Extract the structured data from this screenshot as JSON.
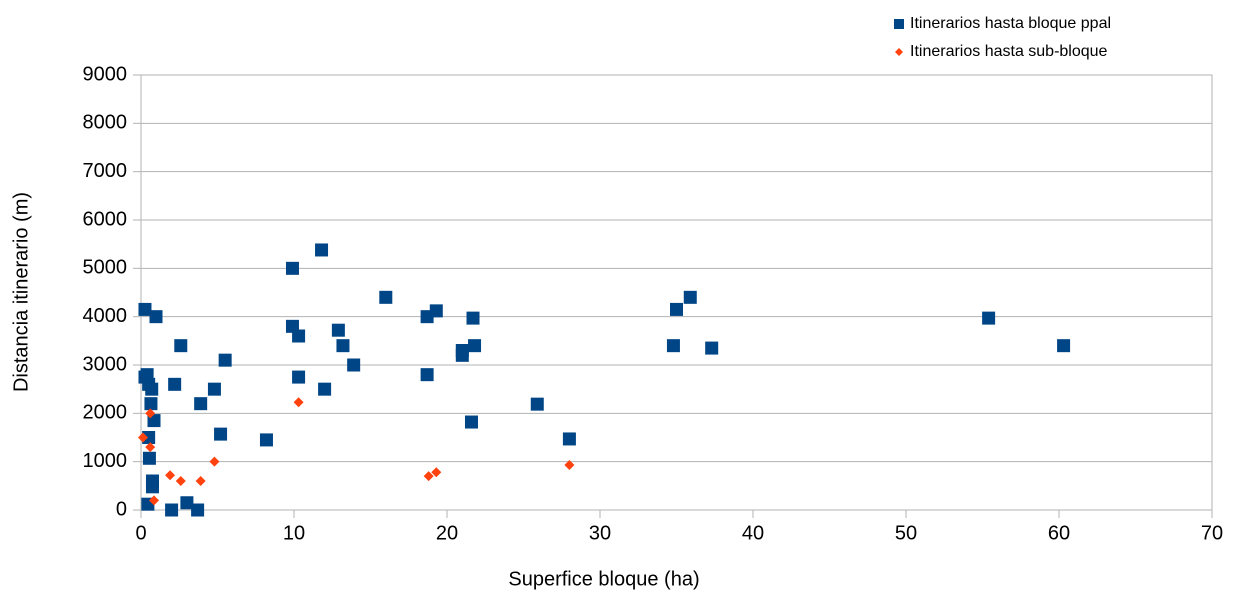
{
  "chart_data": {
    "type": "scatter",
    "xlabel": "Superfice bloque (ha)",
    "ylabel": "Distancia itinerario (m)",
    "xlim": [
      0,
      70
    ],
    "xticks": [
      0,
      10,
      20,
      30,
      40,
      50,
      60,
      70
    ],
    "ylim": [
      0,
      9000
    ],
    "yticks": [
      0,
      1000,
      2000,
      3000,
      4000,
      5000,
      6000,
      7000,
      8000,
      9000
    ],
    "grid": true,
    "legend": "top-right",
    "series": [
      {
        "name": "Itinerarios hasta bloque ppal",
        "color": "#004586",
        "marker": "square",
        "x": [
          0.26,
          0.26,
          0.4,
          0.5,
          0.7,
          0.65,
          0.85,
          0.5,
          0.55,
          0.75,
          0.75,
          0.45,
          0.98,
          2.2,
          2.6,
          2.0,
          3.0,
          3.7,
          3.9,
          4.8,
          5.2,
          5.5,
          8.2,
          9.9,
          9.9,
          10.3,
          10.3,
          11.8,
          12.0,
          12.9,
          13.2,
          13.9,
          16.0,
          18.7,
          18.7,
          19.3,
          21.0,
          21.0,
          21.7,
          21.8,
          21.6,
          25.9,
          28.0,
          34.8,
          35.0,
          35.9,
          37.3,
          55.4,
          60.3
        ],
        "values": [
          4150,
          2750,
          2800,
          2600,
          2500,
          2200,
          1850,
          1500,
          1070,
          600,
          480,
          120,
          4000,
          2600,
          3400,
          0,
          150,
          0,
          2200,
          2500,
          1570,
          3100,
          1450,
          5000,
          3800,
          3600,
          2750,
          5380,
          2500,
          3720,
          3400,
          3000,
          4400,
          4000,
          2800,
          4120,
          3200,
          3300,
          3970,
          3400,
          1820,
          2190,
          1470,
          3400,
          4150,
          4400,
          3350,
          3970,
          3400
        ]
      },
      {
        "name": "Itinerarios hasta sub-bloque",
        "color": "#ff420e",
        "marker": "diamond",
        "x": [
          0.13,
          0.6,
          0.6,
          0.85,
          1.9,
          2.6,
          3.9,
          4.8,
          10.3,
          18.8,
          19.3,
          28.0
        ],
        "values": [
          1500,
          2000,
          1300,
          200,
          720,
          600,
          600,
          1000,
          2230,
          700,
          780,
          930
        ]
      }
    ]
  }
}
